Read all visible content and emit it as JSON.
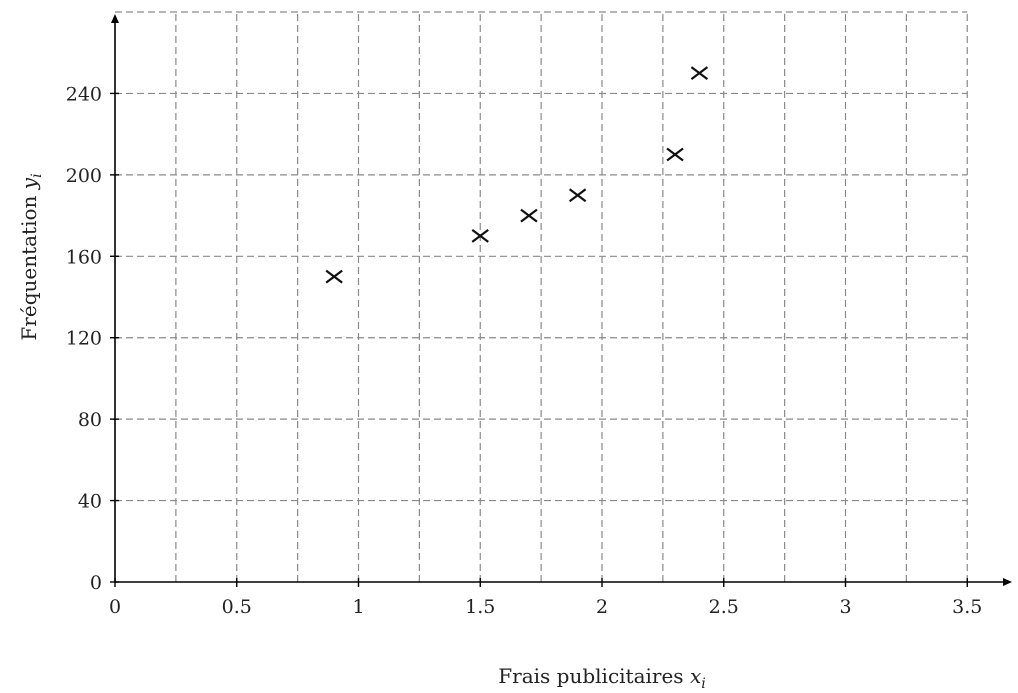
{
  "chart_data": {
    "type": "scatter",
    "title": "",
    "xlabel_text": "Frais publicitaires ",
    "xlabel_var": "x",
    "xlabel_sub": "i",
    "ylabel_text": "Fréquentation ",
    "ylabel_var": "y",
    "ylabel_sub": "i",
    "xlim": [
      0,
      3.7
    ],
    "ylim": [
      0,
      280
    ],
    "x_ticks": [
      0,
      0.5,
      1,
      1.5,
      2,
      2.5,
      3,
      3.5
    ],
    "x_tick_labels": [
      "0",
      "0.5",
      "1",
      "1.5",
      "2",
      "2.5",
      "3",
      "3.5"
    ],
    "y_ticks": [
      0,
      40,
      80,
      120,
      160,
      200,
      240
    ],
    "y_tick_labels": [
      "0",
      "40",
      "80",
      "120",
      "160",
      "200",
      "240"
    ],
    "x_grid": [
      0.25,
      0.5,
      0.75,
      1,
      1.25,
      1.5,
      1.75,
      2,
      2.25,
      2.5,
      2.75,
      3,
      3.25,
      3.5
    ],
    "y_grid": [
      40,
      80,
      120,
      160,
      200,
      240,
      280
    ],
    "grid": true,
    "marker": "x",
    "points": [
      {
        "x": 0.9,
        "y": 150
      },
      {
        "x": 1.5,
        "y": 170
      },
      {
        "x": 1.7,
        "y": 180
      },
      {
        "x": 1.9,
        "y": 190
      },
      {
        "x": 2.3,
        "y": 210
      },
      {
        "x": 2.4,
        "y": 250
      }
    ]
  }
}
